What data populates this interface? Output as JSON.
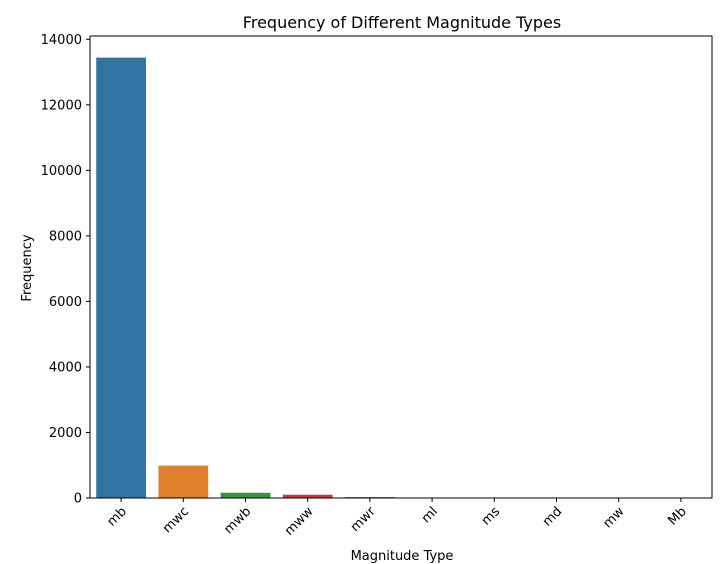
{
  "chart_data": {
    "type": "bar",
    "title": "Frequency of Different Magnitude Types",
    "xlabel": "Magnitude Type",
    "ylabel": "Frequency",
    "categories": [
      "mb",
      "mwc",
      "mwb",
      "mww",
      "mwr",
      "ml",
      "ms",
      "md",
      "mw",
      "Mb"
    ],
    "values": [
      13440,
      990,
      160,
      100,
      30,
      5,
      3,
      2,
      2,
      1
    ],
    "colors": [
      "#3274a1",
      "#e1812c",
      "#3a923a",
      "#c03d3e",
      "#9372b2",
      "#845b53",
      "#d684bd",
      "#7f7f7f",
      "#a9aa35",
      "#2eb4c3"
    ],
    "ylim": [
      0,
      14100
    ],
    "yticks": [
      0,
      2000,
      4000,
      6000,
      8000,
      10000,
      12000,
      14000
    ],
    "grid": false,
    "legend": "none"
  }
}
